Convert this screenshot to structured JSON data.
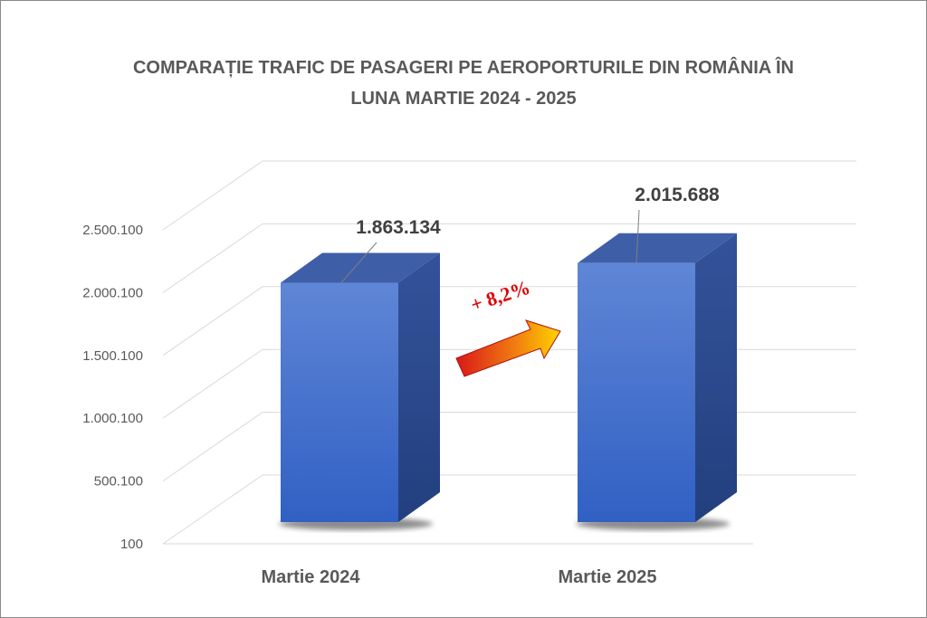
{
  "chart_data": {
    "type": "bar",
    "title_lines": [
      "COMPARAȚIE TRAFIC DE PASAGERI PE AEROPORTURILE DIN ROMÂNIA ÎN",
      "LUNA MARTIE 2024 - 2025"
    ],
    "categories": [
      "Martie 2024",
      "Martie 2025"
    ],
    "values": [
      1863134,
      2015688
    ],
    "data_labels": [
      "1.863.134",
      "2.015.688"
    ],
    "y_ticks": [
      100,
      500100,
      1000100,
      1500100,
      2000100,
      2500100
    ],
    "y_tick_labels": [
      "100",
      "500.100",
      "1.000.100",
      "1.500.100",
      "2.000.100",
      "2.500.100"
    ],
    "ylim": [
      100,
      2500100
    ],
    "grid": true,
    "legend": "none",
    "style": "3d-column",
    "annotation": "+ 8,2%",
    "colors": {
      "bar_front": "#4a78d4",
      "bar_top": "#3f5ea8",
      "bar_side": "#2c4a8a",
      "arrow_start": "#e02020",
      "arrow_end": "#ffd000",
      "annotation": "#e00000",
      "text": "#595959"
    }
  }
}
